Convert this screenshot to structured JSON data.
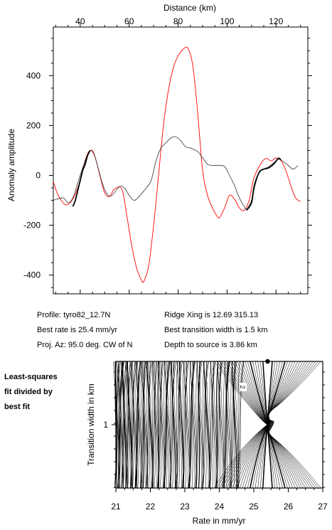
{
  "chart_data": [
    {
      "type": "line",
      "title": "",
      "xlabel": "Distance (km)",
      "ylabel": "Anomaly amplitude",
      "xlim": [
        29,
        133
      ],
      "ylim": [
        -475,
        595
      ],
      "x_ticks": [
        40,
        60,
        80,
        100,
        120
      ],
      "y_ticks": [
        400,
        200,
        0,
        -200,
        -400
      ],
      "grid": false,
      "series": [
        {
          "color": "#ff0000",
          "points": [
            [
              29,
              -25
            ],
            [
              31,
              -80
            ],
            [
              34,
              -118
            ],
            [
              37,
              -95
            ],
            [
              40,
              -20
            ],
            [
              42,
              60
            ],
            [
              44,
              100
            ],
            [
              46,
              75
            ],
            [
              48,
              0
            ],
            [
              50,
              -70
            ],
            [
              52,
              -85
            ],
            [
              54,
              -55
            ],
            [
              57,
              -55
            ],
            [
              59,
              -160
            ],
            [
              61,
              -280
            ],
            [
              63,
              -370
            ],
            [
              65,
              -420
            ],
            [
              66,
              -425
            ],
            [
              68,
              -360
            ],
            [
              70,
              -200
            ],
            [
              72,
              0
            ],
            [
              74,
              200
            ],
            [
              76,
              340
            ],
            [
              78,
              430
            ],
            [
              80,
              480
            ],
            [
              82,
              505
            ],
            [
              84,
              510
            ],
            [
              86,
              440
            ],
            [
              88,
              250
            ],
            [
              90,
              20
            ],
            [
              92,
              -80
            ],
            [
              94,
              -130
            ],
            [
              96,
              -165
            ],
            [
              97,
              -168
            ],
            [
              99,
              -130
            ],
            [
              101,
              -80
            ],
            [
              103,
              -95
            ],
            [
              105,
              -130
            ],
            [
              107,
              -140
            ],
            [
              109,
              -100
            ],
            [
              111,
              -10
            ],
            [
              114,
              50
            ],
            [
              116,
              68
            ],
            [
              118,
              58
            ],
            [
              120,
              70
            ],
            [
              122,
              60
            ],
            [
              124,
              20
            ],
            [
              126,
              -40
            ],
            [
              128,
              -90
            ],
            [
              130,
              -105
            ]
          ]
        },
        {
          "color": "#333333",
          "points": [
            [
              29,
              -100
            ],
            [
              33,
              -90
            ],
            [
              35,
              -110
            ],
            [
              37,
              -90
            ],
            [
              39,
              -30
            ],
            [
              41,
              30
            ],
            [
              43,
              80
            ],
            [
              45,
              100
            ],
            [
              47,
              40
            ],
            [
              49,
              -30
            ],
            [
              51,
              -75
            ],
            [
              53,
              -80
            ],
            [
              56,
              -45
            ],
            [
              58,
              -50
            ],
            [
              60,
              -80
            ],
            [
              62,
              -100
            ],
            [
              64,
              -85
            ],
            [
              67,
              -50
            ],
            [
              69,
              -20
            ],
            [
              71,
              60
            ],
            [
              73,
              110
            ],
            [
              75,
              130
            ],
            [
              77,
              150
            ],
            [
              79,
              155
            ],
            [
              81,
              140
            ],
            [
              83,
              115
            ],
            [
              85,
              110
            ],
            [
              88,
              95
            ],
            [
              90,
              70
            ],
            [
              92,
              45
            ],
            [
              94,
              40
            ],
            [
              97,
              40
            ],
            [
              99,
              35
            ],
            [
              101,
              0
            ],
            [
              103,
              -40
            ],
            [
              105,
              -90
            ],
            [
              107,
              -125
            ],
            [
              108,
              -135
            ],
            [
              110,
              -100
            ],
            [
              111,
              -40
            ],
            [
              113,
              10
            ],
            [
              115,
              25
            ],
            [
              117,
              35
            ],
            [
              119,
              50
            ],
            [
              121,
              65
            ],
            [
              123,
              55
            ],
            [
              125,
              40
            ],
            [
              127,
              25
            ],
            [
              129,
              40
            ]
          ]
        },
        {
          "color": "#000000",
          "points": [
            [
              37,
              -125
            ],
            [
              38,
              -100
            ],
            [
              39,
              -60
            ],
            [
              40,
              -20
            ],
            [
              41,
              20
            ],
            [
              42,
              45
            ],
            [
              43,
              80
            ],
            [
              44,
              100
            ],
            [
              108,
              -140
            ],
            [
              110,
              -110
            ],
            [
              111,
              -50
            ],
            [
              113,
              10
            ],
            [
              115,
              25
            ],
            [
              117,
              30
            ],
            [
              119,
              45
            ],
            [
              121,
              68
            ],
            [
              122,
              62
            ]
          ]
        }
      ]
    },
    {
      "type": "contour",
      "title": "",
      "xlabel": "Rate in mm/yr",
      "ylabel": "Transition width in km",
      "xlim": [
        21,
        27
      ],
      "x_ticks": [
        21,
        22,
        23,
        24,
        25,
        26,
        27
      ],
      "y_ticks": [
        1
      ],
      "best_fit": {
        "rate": 25.4
      },
      "contour_label": "2"
    }
  ],
  "info": {
    "profile": "Profile: tyro82_12.7N",
    "best_rate": "Best rate is 25.4 mm/yr",
    "proj_az": "Proj. Az: 95.0 deg. CW of N",
    "ridge_xing": "Ridge Xing is 12.69 315.13",
    "transition": "Best transition width is 1.5 km",
    "depth": "Depth to source is   3.86 km"
  },
  "side_note": [
    "Least-squares",
    "fit divided by",
    "best fit"
  ]
}
